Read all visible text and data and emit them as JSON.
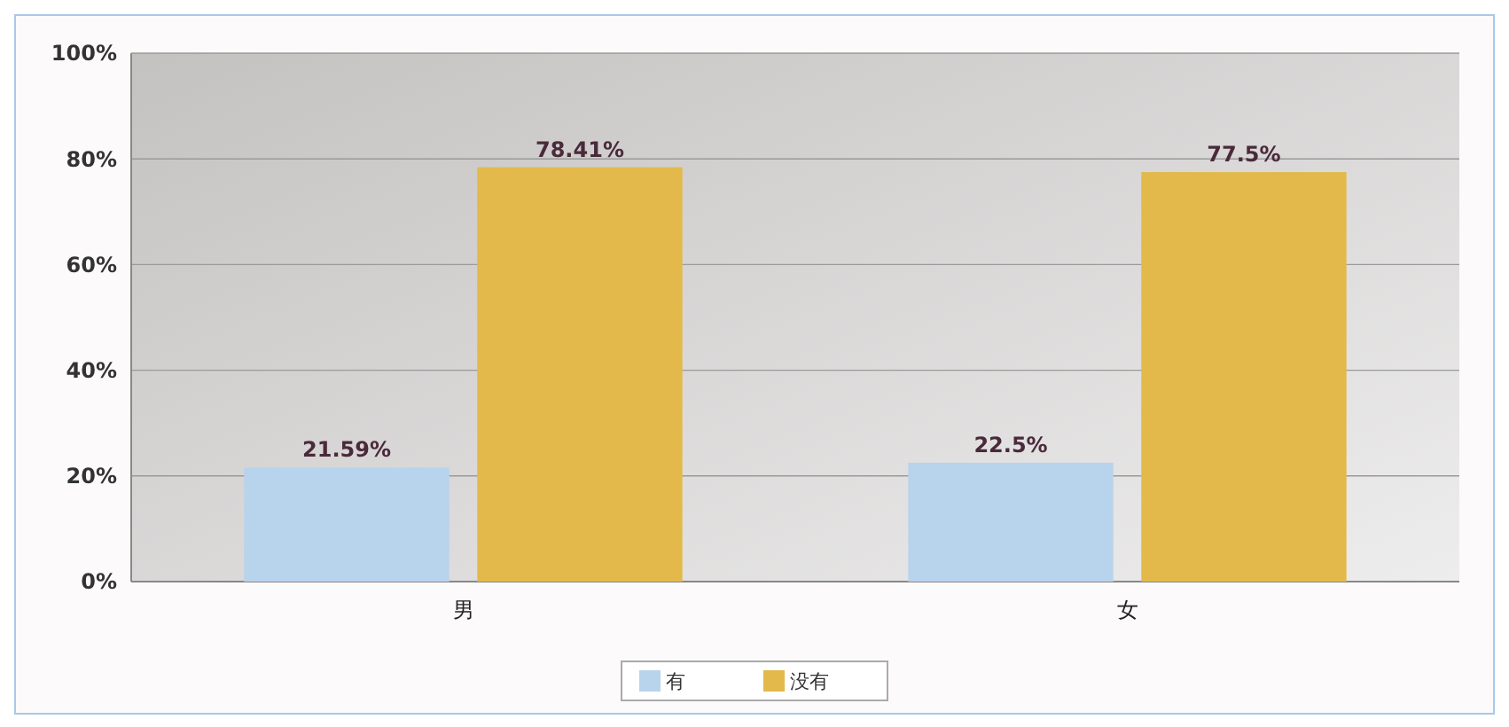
{
  "chart_data": {
    "type": "bar",
    "categories": [
      "男",
      "女"
    ],
    "series": [
      {
        "name": "有",
        "color": "#b8d3ec",
        "values": [
          21.59,
          22.5
        ],
        "value_labels": [
          "21.59%",
          "22.5%"
        ]
      },
      {
        "name": "没有",
        "color": "#e2b94a",
        "values": [
          78.41,
          77.5
        ],
        "value_labels": [
          "78.41%",
          "77.5%"
        ]
      }
    ],
    "ylim": [
      0,
      100
    ],
    "yticks": [
      {
        "value": 0,
        "label": "0%"
      },
      {
        "value": 20,
        "label": "20%"
      },
      {
        "value": 40,
        "label": "40%"
      },
      {
        "value": 60,
        "label": "60%"
      },
      {
        "value": 80,
        "label": "80%"
      },
      {
        "value": 100,
        "label": "100%"
      }
    ],
    "grid": "y",
    "legend": "bottom"
  }
}
